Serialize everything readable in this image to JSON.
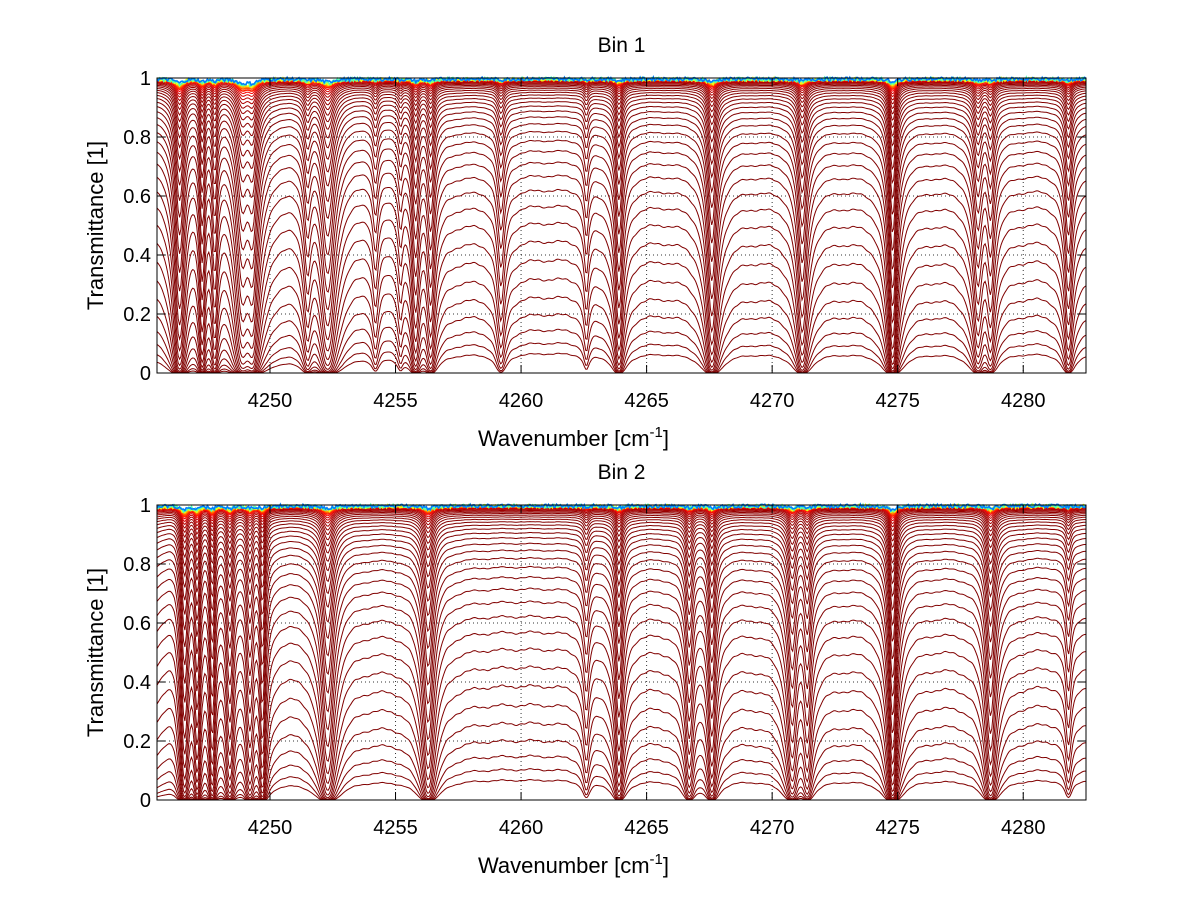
{
  "chart_data": [
    {
      "type": "line",
      "title": "Bin 1",
      "xlabel_main": "Wavenumber [cm",
      "xlabel_sup": "-1",
      "xlabel_end": "]",
      "ylabel": "Transmittance [1]",
      "xlim": [
        4245.5,
        4282.5
      ],
      "ylim": [
        0,
        1
      ],
      "x_ticks": [
        4250,
        4255,
        4260,
        4265,
        4270,
        4275,
        4280
      ],
      "x_tick_labels": [
        "4250",
        "4255",
        "4260",
        "4265",
        "4270",
        "4275",
        "4280"
      ],
      "y_ticks": [
        0,
        0.2,
        0.4,
        0.6,
        0.8,
        1
      ],
      "y_tick_labels": [
        "0",
        "0.2",
        "0.4",
        "0.6",
        "0.8",
        "1"
      ],
      "grid": true,
      "series_count": 40,
      "colormap": "jet",
      "absorption_lines": [
        {
          "x": 4246.4,
          "depth": 0.55,
          "width": 0.18
        },
        {
          "x": 4247.3,
          "depth": 0.35,
          "width": 0.12
        },
        {
          "x": 4247.8,
          "depth": 0.3,
          "width": 0.12
        },
        {
          "x": 4248.9,
          "depth": 0.55,
          "width": 0.25
        },
        {
          "x": 4249.3,
          "depth": 0.5,
          "width": 0.2
        },
        {
          "x": 4251.5,
          "depth": 0.18,
          "width": 0.15
        },
        {
          "x": 4252.3,
          "depth": 0.45,
          "width": 0.25
        },
        {
          "x": 4254.2,
          "depth": 0.1,
          "width": 0.12
        },
        {
          "x": 4255.2,
          "depth": 0.08,
          "width": 0.1
        },
        {
          "x": 4255.8,
          "depth": 0.28,
          "width": 0.15
        },
        {
          "x": 4256.4,
          "depth": 0.25,
          "width": 0.15
        },
        {
          "x": 4259.2,
          "depth": 0.15,
          "width": 0.15
        },
        {
          "x": 4262.6,
          "depth": 0.08,
          "width": 0.1
        },
        {
          "x": 4263.9,
          "depth": 0.28,
          "width": 0.15
        },
        {
          "x": 4267.6,
          "depth": 0.4,
          "width": 0.18
        },
        {
          "x": 4271.2,
          "depth": 0.32,
          "width": 0.18
        },
        {
          "x": 4274.8,
          "depth": 0.55,
          "width": 0.15
        },
        {
          "x": 4278.2,
          "depth": 0.25,
          "width": 0.18
        },
        {
          "x": 4278.7,
          "depth": 0.2,
          "width": 0.15
        },
        {
          "x": 4281.8,
          "depth": 0.22,
          "width": 0.15
        }
      ]
    },
    {
      "type": "line",
      "title": "Bin 2",
      "xlabel_main": "Wavenumber [cm",
      "xlabel_sup": "-1",
      "xlabel_end": "]",
      "ylabel": "Transmittance [1]",
      "xlim": [
        4245.5,
        4282.5
      ],
      "ylim": [
        0,
        1
      ],
      "x_ticks": [
        4250,
        4255,
        4260,
        4265,
        4270,
        4275,
        4280
      ],
      "x_tick_labels": [
        "4250",
        "4255",
        "4260",
        "4265",
        "4270",
        "4275",
        "4280"
      ],
      "y_ticks": [
        0,
        0.2,
        0.4,
        0.6,
        0.8,
        1
      ],
      "y_tick_labels": [
        "0",
        "0.2",
        "0.4",
        "0.6",
        "0.8",
        "1"
      ],
      "grid": true,
      "series_count": 40,
      "colormap": "jet",
      "absorption_lines": [
        {
          "x": 4246.6,
          "depth": 0.55,
          "width": 0.15
        },
        {
          "x": 4247.1,
          "depth": 0.45,
          "width": 0.12
        },
        {
          "x": 4247.7,
          "depth": 0.4,
          "width": 0.12
        },
        {
          "x": 4248.4,
          "depth": 0.35,
          "width": 0.15
        },
        {
          "x": 4249.2,
          "depth": 0.3,
          "width": 0.15
        },
        {
          "x": 4249.7,
          "depth": 0.35,
          "width": 0.12
        },
        {
          "x": 4252.3,
          "depth": 0.42,
          "width": 0.22
        },
        {
          "x": 4256.3,
          "depth": 0.38,
          "width": 0.2
        },
        {
          "x": 4262.6,
          "depth": 0.1,
          "width": 0.12
        },
        {
          "x": 4263.9,
          "depth": 0.28,
          "width": 0.15
        },
        {
          "x": 4266.7,
          "depth": 0.22,
          "width": 0.15
        },
        {
          "x": 4267.6,
          "depth": 0.28,
          "width": 0.15
        },
        {
          "x": 4270.8,
          "depth": 0.3,
          "width": 0.18
        },
        {
          "x": 4271.4,
          "depth": 0.22,
          "width": 0.15
        },
        {
          "x": 4274.8,
          "depth": 0.55,
          "width": 0.15
        },
        {
          "x": 4278.7,
          "depth": 0.35,
          "width": 0.18
        },
        {
          "x": 4281.8,
          "depth": 0.1,
          "width": 0.12
        }
      ]
    }
  ]
}
